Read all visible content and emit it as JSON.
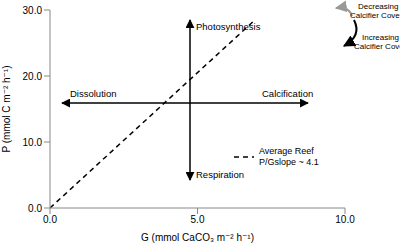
{
  "chart_data": {
    "type": "line",
    "x_label": "G (mmol CaCO₃ m⁻² h⁻¹)",
    "y_label": "P (mmol C m⁻² h⁻¹)",
    "xlim": [
      0,
      10
    ],
    "xticks": [
      {
        "value": 0,
        "label": "0.0"
      },
      {
        "value": 5,
        "label": "5.0"
      },
      {
        "value": 10,
        "label": "10.0"
      }
    ],
    "ylim": [
      0,
      30
    ],
    "yticks": [
      {
        "value": 0,
        "label": "0.0"
      },
      {
        "value": 10,
        "label": "10.0"
      },
      {
        "value": 20,
        "label": "20.0"
      },
      {
        "value": 30,
        "label": "30.0"
      }
    ],
    "x": [
      0,
      6.9
    ],
    "series": [
      {
        "name": "Average Reef P/Gslope ~ 4.1",
        "color": "#000000",
        "line_style": "dashed",
        "values": [
          0,
          28.3
        ]
      }
    ],
    "annotations": {
      "up": "Photosynthesis",
      "down": "Respiration",
      "left": "Dissolution",
      "right": "Calcification",
      "decreasing": "Decreasing Calcifier Cover",
      "increasing": "Increasing Calcifier Cover"
    },
    "legend": "lower right"
  }
}
